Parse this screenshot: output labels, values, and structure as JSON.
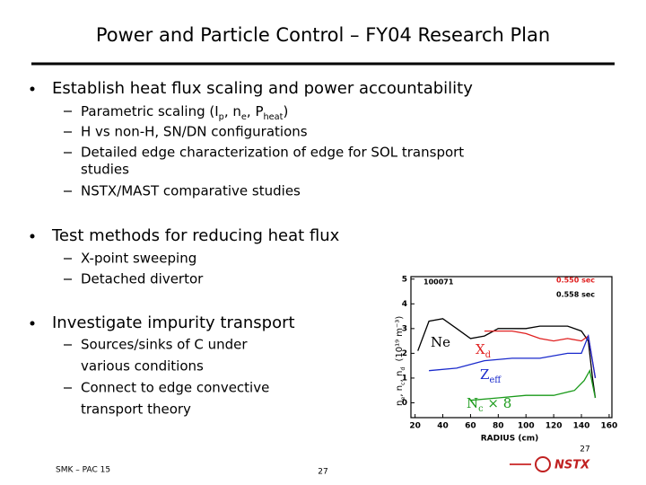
{
  "title": "Power and Particle Control – FY04 Research Plan",
  "bullets": [
    {
      "text": "Establish heat flux scaling and power accountability",
      "items": [
        [
          [
            "Parametric scaling (I",
            "p",
            ", n",
            "e",
            ", P",
            "heat",
            ")"
          ]
        ],
        [
          "H vs non-H, SN/DN configurations"
        ],
        [
          "Detailed edge characterization of edge for SOL transport",
          "studies"
        ],
        [
          "NSTX/MAST comparative studies"
        ]
      ]
    },
    {
      "text": "Test methods for reducing heat flux",
      "items": [
        [
          "X-point sweeping"
        ],
        [
          "Detached divertor"
        ]
      ]
    },
    {
      "text": "Investigate impurity transport",
      "items": [
        [
          "Sources/sinks of C under",
          "various conditions"
        ],
        [
          "Connect to edge convective",
          "transport theory"
        ]
      ]
    }
  ],
  "figure": {
    "shot": "100071",
    "time1": "0.550 sec",
    "time2": "0.558 sec",
    "xlabel": "RADIUS (cm)",
    "ylabel": [
      "n",
      "e",
      ", n",
      "c",
      ", n",
      "d"
    ],
    "ylabel_units": "(10¹⁹ m⁻³)",
    "xlim": [
      17,
      162
    ],
    "ylim": [
      -0.6,
      5.1
    ],
    "xticks": [
      20,
      40,
      60,
      80,
      100,
      120,
      140,
      160
    ],
    "yticks": [
      0,
      1,
      2,
      3,
      4,
      5
    ],
    "curves": [
      {
        "name": [
          "Ne"
        ],
        "color": "#000000",
        "x": [
          22,
          30,
          40,
          50,
          60,
          70,
          80,
          90,
          100,
          110,
          120,
          130,
          140,
          145,
          148,
          150
        ],
        "values": [
          2.1,
          3.3,
          3.4,
          3.0,
          2.6,
          2.7,
          3.0,
          3.0,
          3.0,
          3.1,
          3.1,
          3.1,
          2.9,
          2.5,
          1.0,
          0.2
        ]
      },
      {
        "name": [
          "X",
          "d"
        ],
        "color": "#e02020",
        "x": [
          70,
          80,
          90,
          100,
          110,
          120,
          130,
          140,
          145,
          150
        ],
        "values": [
          2.9,
          2.9,
          2.9,
          2.8,
          2.6,
          2.5,
          2.6,
          2.5,
          2.7,
          1.0
        ]
      },
      {
        "name": [
          "Z",
          "eff"
        ],
        "color": "#1a2acc",
        "x": [
          30,
          50,
          70,
          90,
          110,
          130,
          140,
          145,
          150
        ],
        "values": [
          1.3,
          1.4,
          1.7,
          1.8,
          1.8,
          2.0,
          2.0,
          2.7,
          1.0
        ]
      },
      {
        "name": [
          "N",
          "c",
          " × 8"
        ],
        "color": "#1a9a1a",
        "x": [
          60,
          80,
          100,
          120,
          135,
          142,
          146,
          150
        ],
        "values": [
          0.1,
          0.2,
          0.3,
          0.3,
          0.5,
          0.9,
          1.3,
          0.2
        ]
      }
    ]
  },
  "footer": {
    "left": "SMK – PAC 15",
    "center": "27",
    "right": "27",
    "logo": "NSTX"
  }
}
